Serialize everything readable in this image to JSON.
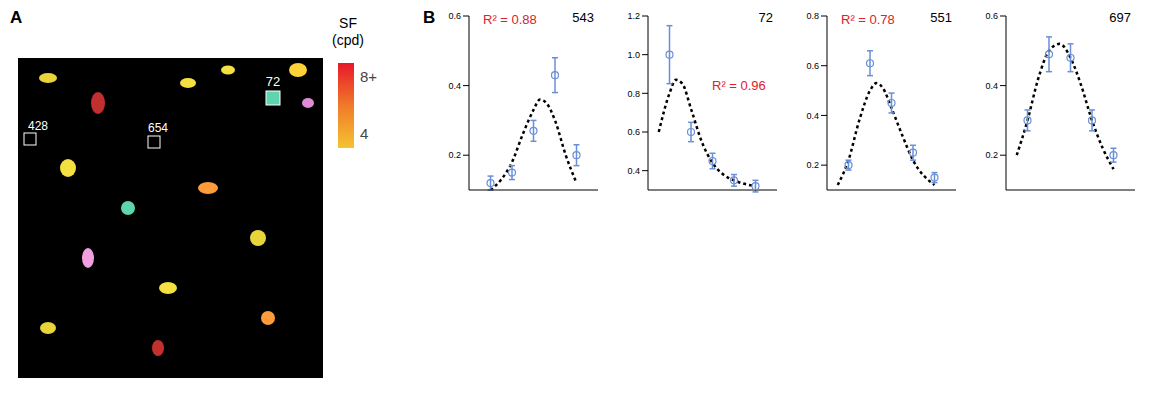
{
  "panel_labels": [
    "A",
    "B"
  ],
  "map": {
    "colorbar_title": "SF (cpd)",
    "colorbar_range": [
      3,
      9
    ],
    "colorbar_ticks": [
      {
        "value": 8,
        "label": "8+"
      },
      4
    ],
    "cell_labels": [
      "72",
      "428",
      "654"
    ]
  },
  "chart_data": [
    {
      "type": "scatter",
      "title": "543",
      "annotation": "R² = 0.88",
      "x": [
        1,
        2,
        3,
        4,
        5
      ],
      "values": [
        0.12,
        0.15,
        0.27,
        0.43,
        0.2
      ],
      "errors": [
        0.02,
        0.02,
        0.03,
        0.05,
        0.03
      ],
      "color": "#6a8fd6",
      "marker": "circle",
      "fit": {
        "x": [
          1,
          1.5,
          2,
          2.5,
          3,
          3.3,
          3.6,
          4,
          4.5,
          5
        ],
        "values": [
          0.1,
          0.13,
          0.18,
          0.26,
          0.33,
          0.36,
          0.35,
          0.3,
          0.2,
          0.12
        ],
        "color": "#000000",
        "line_style": "dashed"
      },
      "xlim": [
        0,
        6
      ],
      "ylim": [
        0.1,
        0.6
      ],
      "yticks": [
        0.2,
        0.4,
        0.6
      ],
      "tick_labels": "y"
    },
    {
      "type": "scatter",
      "title": "72",
      "annotation": "R² = 0.96",
      "x": [
        1,
        2,
        3,
        4,
        5
      ],
      "values": [
        1.0,
        0.6,
        0.45,
        0.35,
        0.32
      ],
      "errors": [
        0.15,
        0.05,
        0.04,
        0.03,
        0.03
      ],
      "color": "#6a8fd6",
      "marker": "circle",
      "fit": {
        "x": [
          0.5,
          1,
          1.3,
          1.6,
          2,
          2.5,
          3,
          3.5,
          4,
          5
        ],
        "values": [
          0.6,
          0.8,
          0.87,
          0.85,
          0.72,
          0.55,
          0.44,
          0.38,
          0.35,
          0.32
        ],
        "color": "#000000",
        "line_style": "dashed"
      },
      "xlim": [
        0,
        6
      ],
      "ylim": [
        0.3,
        1.2
      ],
      "yticks": [
        0.4,
        0.6,
        0.8,
        {
          "value": 1,
          "label": "1.0"
        },
        1.2
      ],
      "tick_labels": "y"
    },
    {
      "type": "scatter",
      "title": "551",
      "annotation": "R² = 0.78",
      "x": [
        1,
        2,
        3,
        4,
        5
      ],
      "values": [
        0.2,
        0.61,
        0.45,
        0.25,
        0.15
      ],
      "errors": [
        0.02,
        0.05,
        0.04,
        0.03,
        0.02
      ],
      "color": "#6a8fd6",
      "marker": "circle",
      "fit": {
        "x": [
          0.5,
          1,
          1.5,
          2,
          2.3,
          2.6,
          3,
          3.5,
          4,
          5
        ],
        "values": [
          0.12,
          0.22,
          0.38,
          0.5,
          0.53,
          0.51,
          0.43,
          0.32,
          0.22,
          0.12
        ],
        "color": "#000000",
        "line_style": "dashed"
      },
      "xlim": [
        0,
        6
      ],
      "ylim": [
        0.1,
        0.8
      ],
      "yticks": [
        0.2,
        0.4,
        0.6,
        0.8
      ],
      "tick_labels": "y"
    },
    {
      "type": "scatter",
      "title": "697",
      "x": [
        1,
        2,
        3,
        4,
        5
      ],
      "values": [
        0.3,
        0.49,
        0.48,
        0.3,
        0.2
      ],
      "errors": [
        0.03,
        0.05,
        0.04,
        0.03,
        0.02
      ],
      "color": "#6a8fd6",
      "marker": "circle",
      "fit": {
        "x": [
          0.5,
          1,
          1.5,
          2,
          2.5,
          3,
          3.5,
          4,
          4.5,
          5
        ],
        "values": [
          0.2,
          0.3,
          0.42,
          0.5,
          0.52,
          0.48,
          0.4,
          0.3,
          0.22,
          0.16
        ],
        "color": "#000000",
        "line_style": "dashed"
      },
      "xlim": [
        0,
        6
      ],
      "ylim": [
        0.1,
        0.6
      ],
      "yticks": [
        0.2,
        0.4,
        0.6
      ],
      "tick_labels": "y"
    }
  ]
}
